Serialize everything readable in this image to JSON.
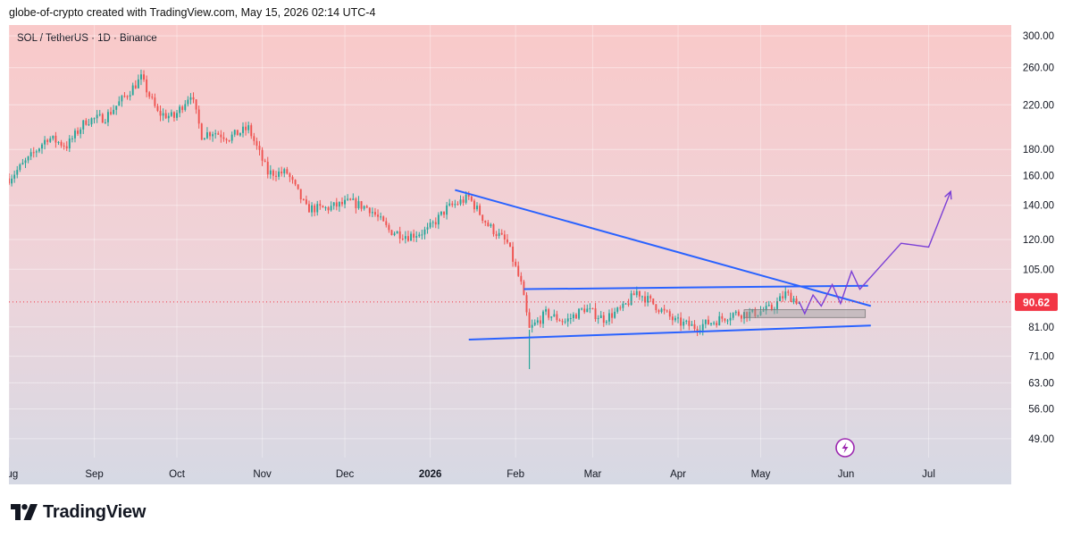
{
  "header": {
    "attribution": "globe-of-crypto created with TradingView.com, May 15, 2026 02:14 UTC-4"
  },
  "chart_data": {
    "type": "candlestick",
    "title": "SOL / TetherUS · 1D · Binance",
    "y_scale": "log",
    "ylim": [
      45,
      310
    ],
    "y_ticks": [
      {
        "value": 300,
        "label": "300.00"
      },
      {
        "value": 260,
        "label": "260.00"
      },
      {
        "value": 220,
        "label": "220.00"
      },
      {
        "value": 180,
        "label": "180.00"
      },
      {
        "value": 160,
        "label": "160.00"
      },
      {
        "value": 140,
        "label": "140.00"
      },
      {
        "value": 120,
        "label": "120.00"
      },
      {
        "value": 105,
        "label": "105.00"
      },
      {
        "value": 81,
        "label": "81.00"
      },
      {
        "value": 71,
        "label": "71.00"
      },
      {
        "value": 63,
        "label": "63.00"
      },
      {
        "value": 56,
        "label": "56.00"
      },
      {
        "value": 49,
        "label": "49.00"
      }
    ],
    "x_range": [
      "2025-08-01",
      "2026-07-31"
    ],
    "x_ticks": [
      {
        "date": "2025-08-01",
        "label": "Aug",
        "bold": false
      },
      {
        "date": "2025-09-01",
        "label": "Sep",
        "bold": false
      },
      {
        "date": "2025-10-01",
        "label": "Oct",
        "bold": false
      },
      {
        "date": "2025-11-01",
        "label": "Nov",
        "bold": false
      },
      {
        "date": "2025-12-01",
        "label": "Dec",
        "bold": false
      },
      {
        "date": "2026-01-01",
        "label": "2026",
        "bold": true
      },
      {
        "date": "2026-02-01",
        "label": "Feb",
        "bold": false
      },
      {
        "date": "2026-03-01",
        "label": "Mar",
        "bold": false
      },
      {
        "date": "2026-04-01",
        "label": "Apr",
        "bold": false
      },
      {
        "date": "2026-05-01",
        "label": "May",
        "bold": false
      },
      {
        "date": "2026-06-01",
        "label": "Jun",
        "bold": false
      },
      {
        "date": "2026-07-01",
        "label": "Jul",
        "bold": false
      }
    ],
    "price_path": [
      [
        "2025-08-01",
        158
      ],
      [
        "2025-08-08",
        172
      ],
      [
        "2025-08-15",
        190
      ],
      [
        "2025-08-22",
        183
      ],
      [
        "2025-08-29",
        205
      ],
      [
        "2025-09-05",
        208
      ],
      [
        "2025-09-12",
        228
      ],
      [
        "2025-09-18",
        248
      ],
      [
        "2025-09-24",
        212
      ],
      [
        "2025-09-30",
        208
      ],
      [
        "2025-10-06",
        232
      ],
      [
        "2025-10-10",
        192
      ],
      [
        "2025-10-14",
        195
      ],
      [
        "2025-10-20",
        190
      ],
      [
        "2025-10-27",
        198
      ],
      [
        "2025-11-03",
        162
      ],
      [
        "2025-11-10",
        162
      ],
      [
        "2025-11-17",
        138
      ],
      [
        "2025-11-24",
        138
      ],
      [
        "2025-12-03",
        142
      ],
      [
        "2025-12-10",
        138
      ],
      [
        "2025-12-17",
        125
      ],
      [
        "2025-12-24",
        122
      ],
      [
        "2025-12-31",
        125
      ],
      [
        "2026-01-07",
        138
      ],
      [
        "2026-01-15",
        145
      ],
      [
        "2026-01-22",
        128
      ],
      [
        "2026-01-29",
        118
      ],
      [
        "2026-02-03",
        98
      ],
      [
        "2026-02-06",
        80
      ],
      [
        "2026-02-12",
        86
      ],
      [
        "2026-02-19",
        83
      ],
      [
        "2026-02-26",
        88
      ],
      [
        "2026-03-05",
        84
      ],
      [
        "2026-03-12",
        88
      ],
      [
        "2026-03-17",
        95
      ],
      [
        "2026-03-24",
        89
      ],
      [
        "2026-03-31",
        83
      ],
      [
        "2026-04-07",
        81
      ],
      [
        "2026-04-14",
        83
      ],
      [
        "2026-04-21",
        86
      ],
      [
        "2026-04-28",
        86
      ],
      [
        "2026-05-05",
        88
      ],
      [
        "2026-05-10",
        94
      ],
      [
        "2026-05-15",
        90.62
      ]
    ],
    "current_price": {
      "value": 90.62,
      "label": "90.62"
    },
    "drawings": {
      "descending_trendline": [
        [
          "2026-01-10",
          150
        ],
        [
          "2026-06-10",
          89
        ]
      ],
      "channel_top": [
        [
          "2026-02-04",
          96
        ],
        [
          "2026-06-09",
          97.5
        ]
      ],
      "channel_bottom": [
        [
          "2026-01-15",
          76.5
        ],
        [
          "2026-06-10",
          81.5
        ]
      ],
      "support_zone": {
        "x": [
          "2026-04-25",
          "2026-06-08"
        ],
        "y": [
          84.5,
          87.5
        ]
      },
      "projection": [
        [
          "2026-05-15",
          90.6
        ],
        [
          "2026-05-17",
          86
        ],
        [
          "2026-05-20",
          93.5
        ],
        [
          "2026-05-23",
          89
        ],
        [
          "2026-05-27",
          98
        ],
        [
          "2026-05-30",
          90
        ],
        [
          "2026-06-03",
          104
        ],
        [
          "2026-06-06",
          96
        ],
        [
          "2026-06-21",
          118
        ],
        [
          "2026-07-01",
          116
        ],
        [
          "2026-07-09",
          149
        ]
      ]
    },
    "colors": {
      "up": "#26a69a",
      "down": "#ef5350",
      "trendline": "#2962ff",
      "projection": "#7b3fd6",
      "price_tag": "#f23645"
    }
  },
  "branding": {
    "logo_text": "TradingView"
  }
}
